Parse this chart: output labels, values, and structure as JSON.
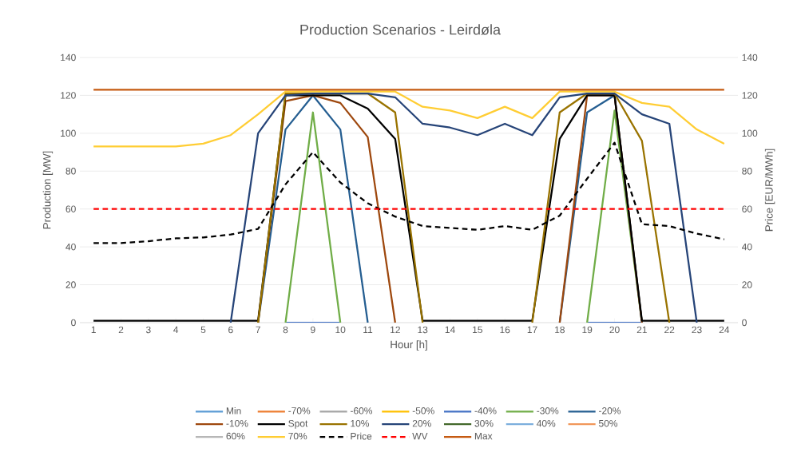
{
  "chart_data": {
    "type": "line",
    "title": "Production Scenarios - Leirdøla",
    "xlabel": "Hour [h]",
    "ylabel": "Production [MW]",
    "y2label": "Price [EUR/MWh]",
    "categories": [
      "1",
      "2",
      "3",
      "4",
      "5",
      "6",
      "7",
      "8",
      "9",
      "10",
      "11",
      "12",
      "13",
      "14",
      "15",
      "16",
      "17",
      "18",
      "19",
      "20",
      "21",
      "22",
      "23",
      "24"
    ],
    "ylim": [
      0,
      140
    ],
    "yticks": [
      0,
      20,
      40,
      60,
      80,
      100,
      120,
      140
    ],
    "y2lim": [
      0,
      140
    ],
    "y2ticks": [
      0,
      20,
      40,
      60,
      80,
      100,
      120,
      140
    ],
    "grid": "y",
    "legend": "bottom",
    "marker": "none",
    "line_style": "solid",
    "series": [
      {
        "name": "Min",
        "color": "#5b9bd5",
        "values": [
          null,
          null,
          null,
          null,
          null,
          null,
          null,
          null,
          null,
          null,
          null,
          null,
          null,
          null,
          null,
          null,
          null,
          null,
          null,
          null,
          null,
          null,
          null,
          null
        ]
      },
      {
        "name": "-70%",
        "color": "#ed7d31",
        "values": [
          null,
          null,
          null,
          null,
          null,
          null,
          null,
          null,
          null,
          null,
          null,
          null,
          null,
          null,
          null,
          null,
          null,
          null,
          null,
          null,
          null,
          null,
          null,
          null
        ]
      },
      {
        "name": "-60%",
        "color": "#a5a5a5",
        "values": [
          null,
          null,
          null,
          null,
          null,
          null,
          null,
          null,
          null,
          null,
          null,
          null,
          null,
          null,
          null,
          null,
          null,
          null,
          null,
          null,
          null,
          null,
          null,
          null
        ]
      },
      {
        "name": "-50%",
        "color": "#ffc000",
        "values": [
          null,
          null,
          null,
          null,
          null,
          null,
          null,
          null,
          null,
          null,
          null,
          null,
          null,
          null,
          null,
          null,
          null,
          null,
          null,
          null,
          null,
          null,
          null,
          null
        ]
      },
      {
        "name": "-40%",
        "color": "#4472c4",
        "values": [
          null,
          null,
          null,
          null,
          null,
          null,
          null,
          0,
          0,
          0,
          null,
          null,
          null,
          null,
          null,
          null,
          null,
          null,
          0,
          0,
          0,
          null,
          null,
          null
        ]
      },
      {
        "name": "-30%",
        "color": "#70ad47",
        "values": [
          null,
          null,
          null,
          null,
          null,
          null,
          null,
          0,
          111,
          0,
          null,
          null,
          null,
          null,
          null,
          null,
          null,
          null,
          0,
          112,
          0,
          null,
          null,
          null
        ]
      },
      {
        "name": "-20%",
        "color": "#255e91",
        "values": [
          null,
          null,
          null,
          null,
          null,
          null,
          0,
          102,
          120,
          102,
          0,
          null,
          null,
          null,
          null,
          null,
          null,
          0,
          111,
          120,
          0,
          null,
          null,
          null
        ]
      },
      {
        "name": "-10%",
        "color": "#9e480e",
        "values": [
          null,
          null,
          null,
          null,
          null,
          null,
          0,
          117,
          120,
          116,
          98,
          0,
          null,
          null,
          null,
          null,
          null,
          0,
          120,
          120,
          0,
          null,
          null,
          null
        ]
      },
      {
        "name": "Spot",
        "color": "#000000",
        "values": [
          1,
          1,
          1,
          1,
          1,
          1,
          1,
          120,
          120,
          120,
          113,
          97,
          1,
          1,
          1,
          1,
          1,
          97,
          120,
          120,
          1,
          1,
          1,
          1
        ]
      },
      {
        "name": "10%",
        "color": "#997300",
        "values": [
          null,
          null,
          null,
          null,
          null,
          null,
          0,
          121,
          121,
          121,
          121,
          111,
          0,
          null,
          null,
          null,
          0,
          111,
          121,
          121,
          96,
          0,
          null,
          null
        ]
      },
      {
        "name": "20%",
        "color": "#264478",
        "values": [
          null,
          null,
          null,
          null,
          null,
          0,
          100,
          120,
          121,
          121,
          121,
          119,
          105,
          103,
          99,
          105,
          99,
          119,
          121,
          121,
          110,
          105,
          0,
          null
        ]
      },
      {
        "name": "30%",
        "color": "#43682b",
        "values": [
          null,
          null,
          null,
          null,
          null,
          null,
          null,
          null,
          null,
          null,
          null,
          null,
          null,
          null,
          null,
          null,
          null,
          null,
          null,
          null,
          null,
          null,
          null,
          null
        ]
      },
      {
        "name": "40%",
        "color": "#7cafdd",
        "values": [
          null,
          null,
          null,
          null,
          null,
          null,
          null,
          null,
          null,
          null,
          null,
          null,
          null,
          null,
          null,
          null,
          null,
          null,
          null,
          null,
          null,
          null,
          null,
          null
        ]
      },
      {
        "name": "50%",
        "color": "#f1975a",
        "values": [
          null,
          null,
          null,
          null,
          null,
          null,
          null,
          null,
          null,
          null,
          null,
          null,
          null,
          null,
          null,
          null,
          null,
          null,
          null,
          null,
          null,
          null,
          null,
          null
        ]
      },
      {
        "name": "60%",
        "color": "#b7b7b7",
        "values": [
          null,
          null,
          null,
          null,
          null,
          null,
          null,
          null,
          null,
          null,
          null,
          null,
          null,
          null,
          null,
          null,
          null,
          null,
          null,
          null,
          null,
          null,
          null,
          null
        ]
      },
      {
        "name": "70%",
        "color": "#ffcd33",
        "values": [
          93,
          93,
          93,
          93,
          94.5,
          99,
          110,
          122,
          122,
          122,
          122,
          122,
          114,
          112,
          108,
          114,
          108,
          122,
          122,
          122,
          116,
          114,
          102,
          94.5
        ]
      },
      {
        "name": "Price",
        "color": "#000000",
        "axis": "y2",
        "line_style": "dashed",
        "values": [
          42,
          42,
          43,
          44.5,
          45,
          46.5,
          49.5,
          73,
          90,
          74,
          63,
          56,
          51,
          50,
          49,
          51,
          49,
          56.5,
          76,
          95,
          52,
          51,
          47,
          44
        ]
      },
      {
        "name": "WV",
        "color": "#ff0000",
        "axis": "y2",
        "line_style": "dashed",
        "values": [
          60,
          60,
          60,
          60,
          60,
          60,
          60,
          60,
          60,
          60,
          60,
          60,
          60,
          60,
          60,
          60,
          60,
          60,
          60,
          60,
          60,
          60,
          60,
          60
        ]
      },
      {
        "name": "Max",
        "color": "#c55a11",
        "values": [
          123,
          123,
          123,
          123,
          123,
          123,
          123,
          123,
          123,
          123,
          123,
          123,
          123,
          123,
          123,
          123,
          123,
          123,
          123,
          123,
          123,
          123,
          123,
          123
        ]
      }
    ]
  }
}
